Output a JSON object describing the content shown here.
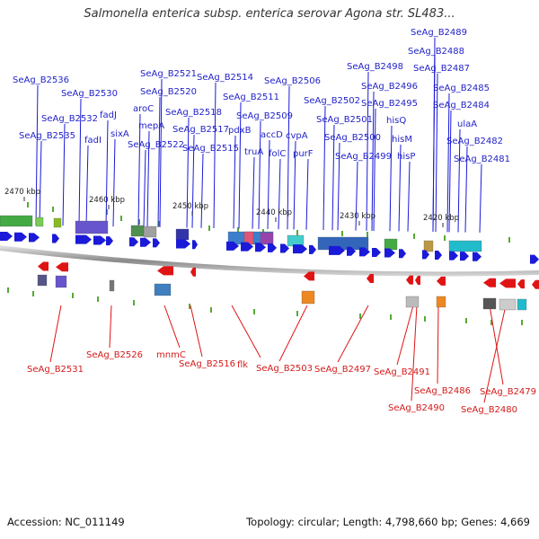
{
  "title": "Salmonella enterica subsp. enterica serovar Agona str. SL483...",
  "footer": {
    "accession": "Accession: NC_011149",
    "summary": "Topology: circular; Length: 4,798,660 bp; Genes: 4,669"
  },
  "colors": {
    "forward": "#1a1ad8",
    "reverse": "#e01414",
    "axis": "#9a9a9a"
  },
  "ticks": [
    "2470 kbp",
    "2460 kbp",
    "2450 kbp",
    "2440 kbp",
    "2430 kbp",
    "2420 kbp"
  ],
  "top_labels": [
    "SeAg_B2536",
    "SeAg_B2530",
    "SeAg_B2532",
    "fadJ",
    "SeAg_B2535",
    "fadI",
    "sixA",
    "SeAg_B2521",
    "SeAg_B2520",
    "aroC",
    "mepA",
    "SeAg_B2522",
    "SeAg_B2518",
    "SeAg_B2517",
    "SeAg_B2515",
    "SeAg_B2514",
    "SeAg_B2511",
    "pdxB",
    "truA",
    "SeAg_B2509",
    "accD",
    "folC",
    "SeAg_B2506",
    "cvpA",
    "purF",
    "SeAg_B2502",
    "SeAg_B2501",
    "SeAg_B2500",
    "SeAg_B2499",
    "SeAg_B2498",
    "SeAg_B2496",
    "SeAg_B2495",
    "hisQ",
    "hisM",
    "hisP",
    "SeAg_B2489",
    "SeAg_B2488",
    "SeAg_B2487",
    "SeAg_B2485",
    "SeAg_B2484",
    "ulaA",
    "SeAg_B2482",
    "SeAg_B2481"
  ],
  "bottom_labels": [
    "SeAg_B2531",
    "SeAg_B2526",
    "mnmC",
    "SeAg_B2516",
    "flk",
    "SeAg_B2503",
    "SeAg_B2497",
    "SeAg_B2491",
    "SeAg_B2490",
    "SeAg_B2486",
    "SeAg_B2480",
    "SeAg_B2479"
  ]
}
